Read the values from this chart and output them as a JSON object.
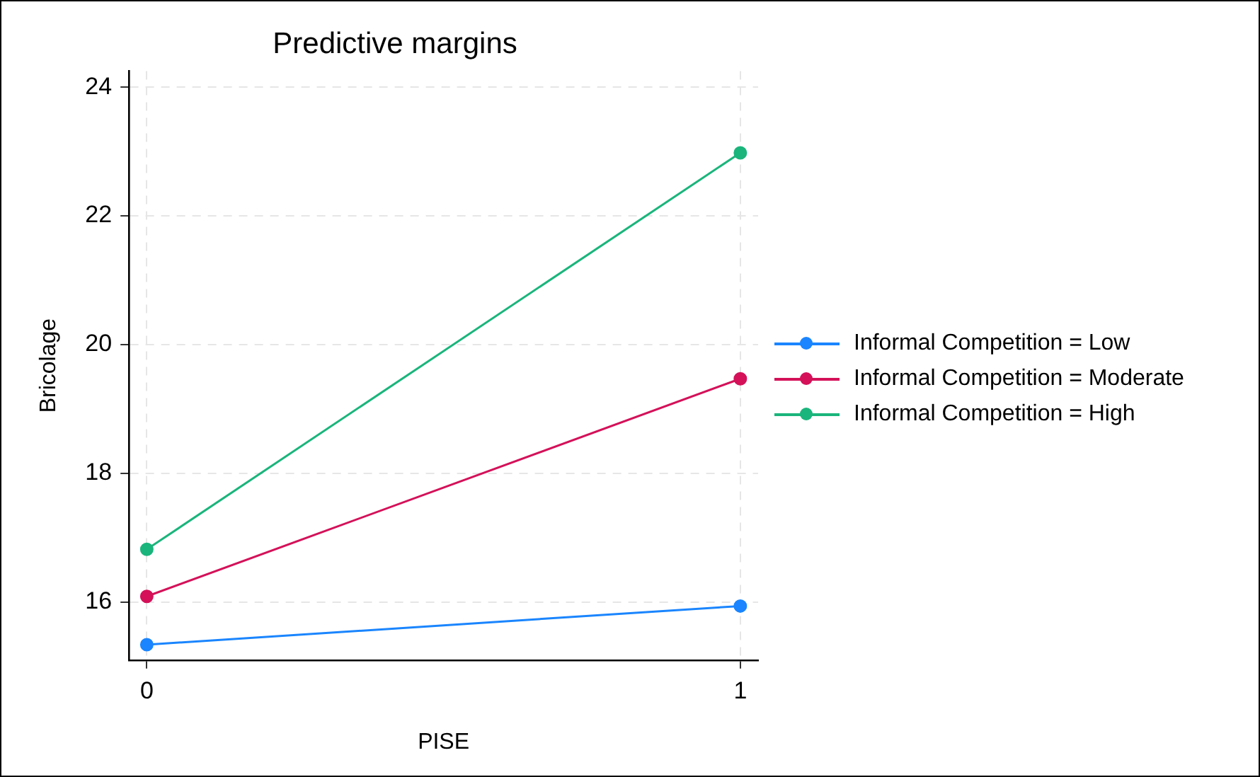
{
  "chart_data": {
    "type": "line",
    "title": "Predictive margins",
    "xlabel": "PISE",
    "ylabel": "Bricolage",
    "x": [
      0,
      1
    ],
    "xlim": [
      -0.03,
      1.03
    ],
    "xticks": [
      0,
      1
    ],
    "ylim": [
      15.1,
      24.25
    ],
    "yticks": [
      16,
      18,
      20,
      22,
      24
    ],
    "series": [
      {
        "name": "Informal Competition = Low",
        "color": "#1a85ff",
        "values": [
          15.34,
          15.94
        ]
      },
      {
        "name": "Informal Competition = Moderate",
        "color": "#d41159",
        "values": [
          16.09,
          19.47
        ]
      },
      {
        "name": "Informal Competition = High",
        "color": "#1ab57c",
        "values": [
          16.82,
          22.98
        ]
      }
    ],
    "grid": true,
    "legend": "right",
    "marker": "circle",
    "line_style": "solid"
  }
}
